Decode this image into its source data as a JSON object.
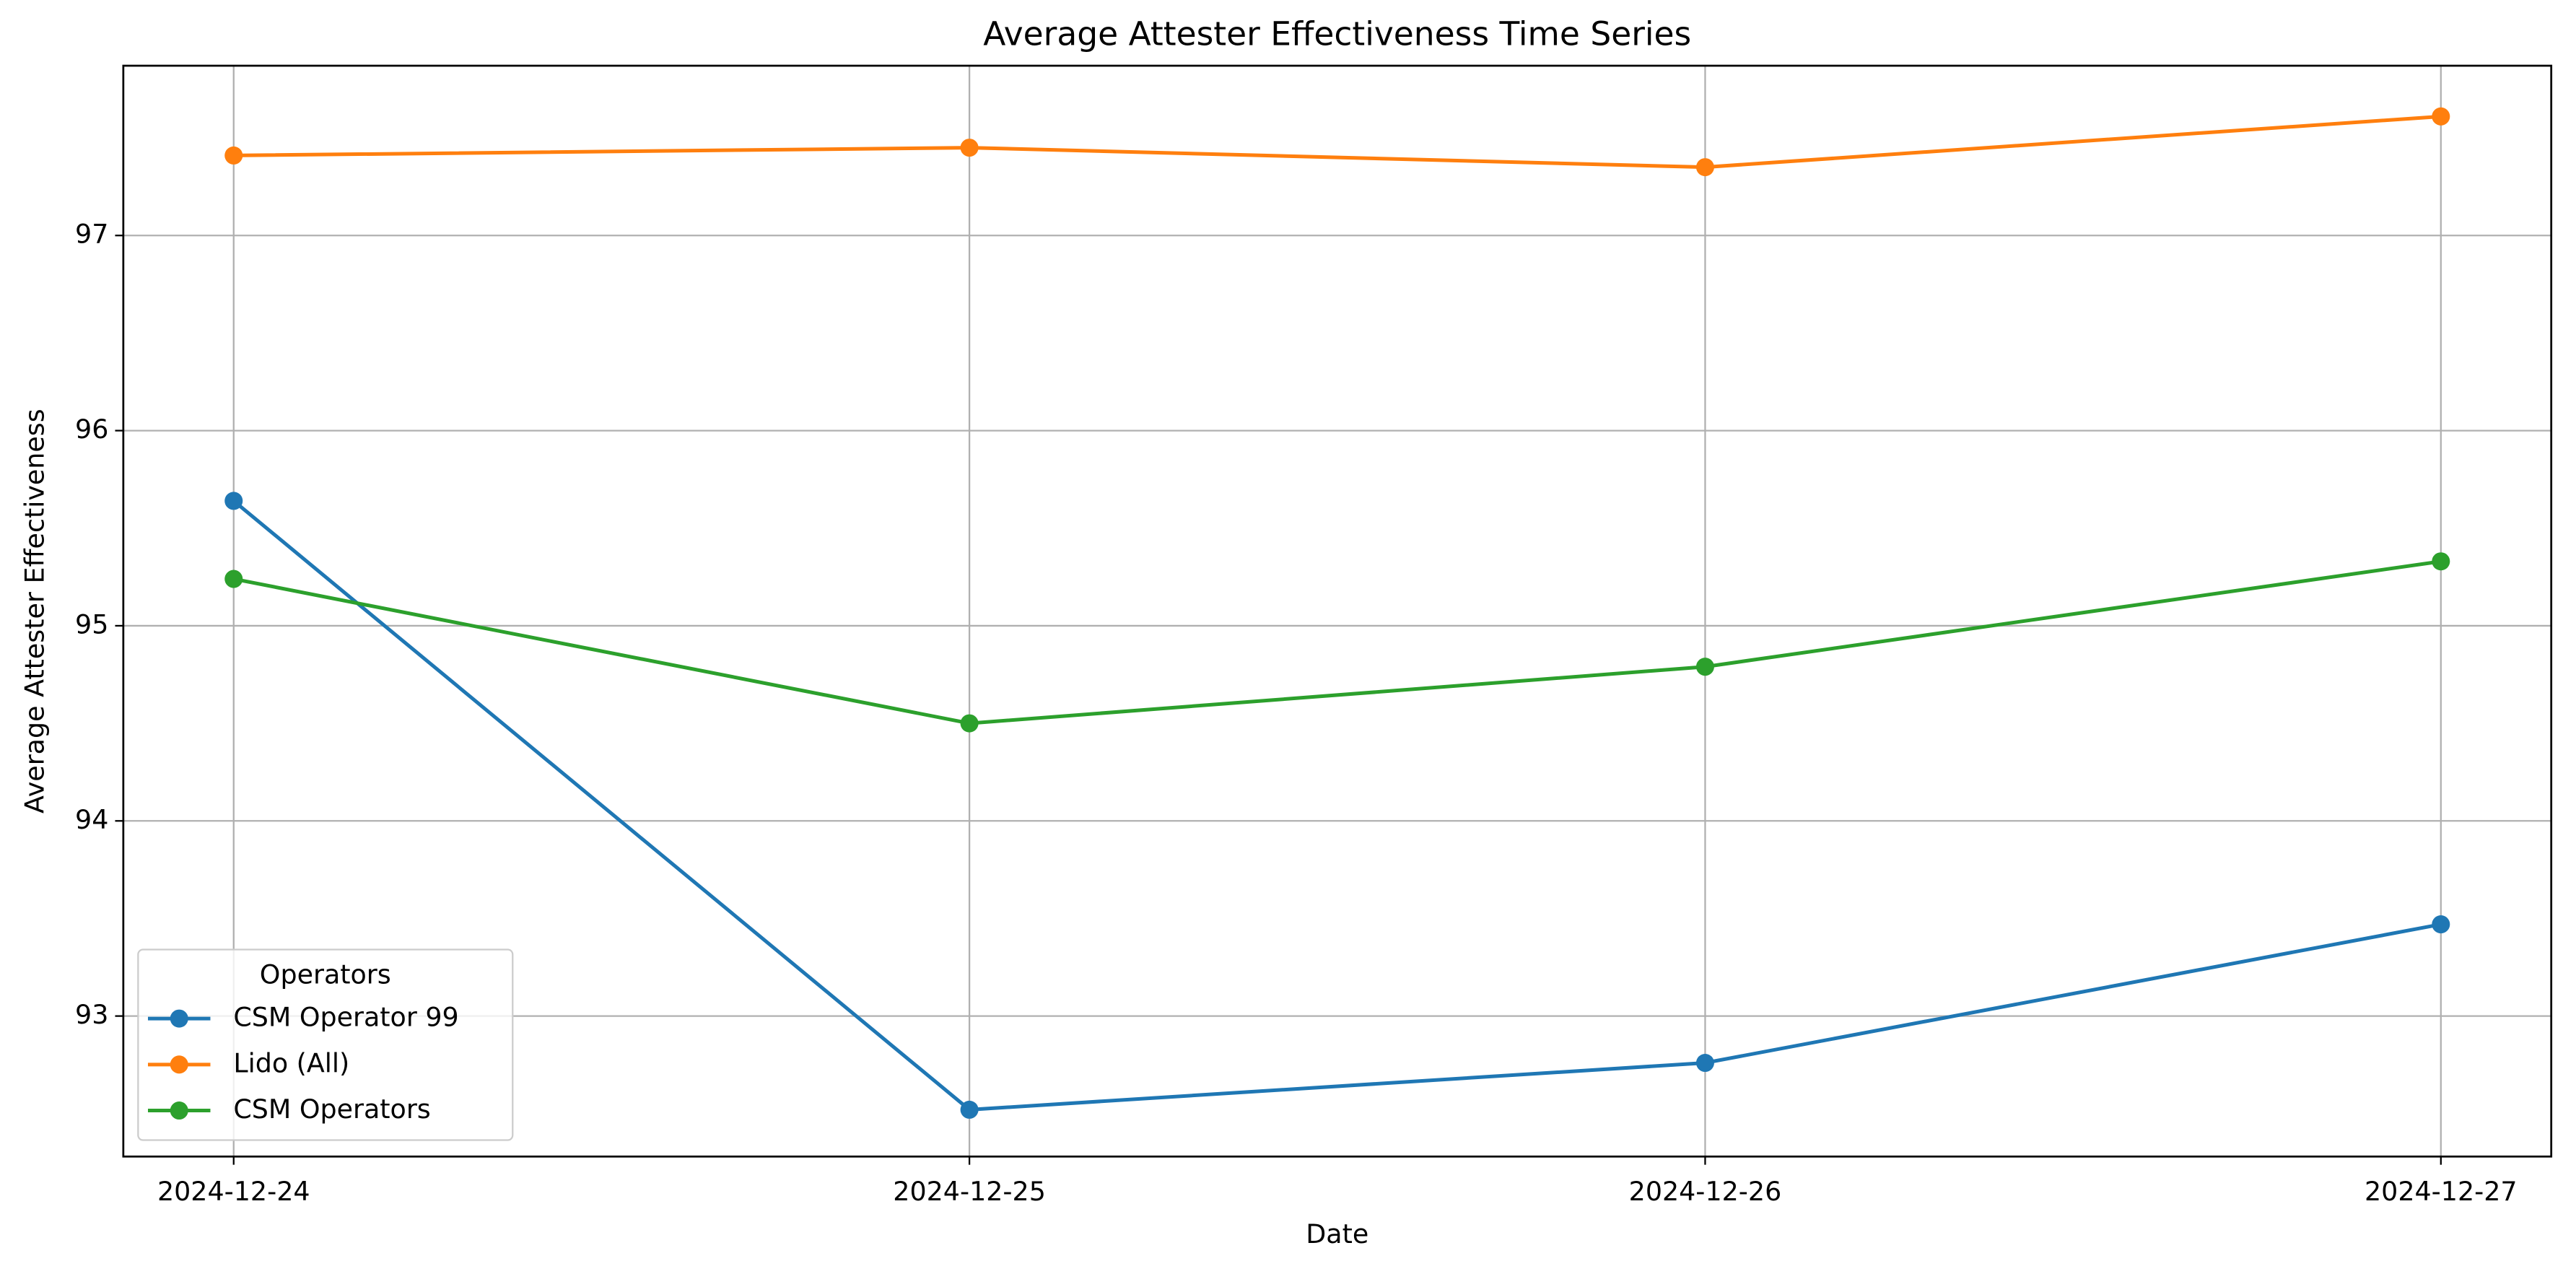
{
  "chart_data": {
    "type": "line",
    "title": "Average Attester Effectiveness Time Series",
    "x_label": "Date",
    "y_label": "Average Attester Effectiveness",
    "categories": [
      "2024-12-24",
      "2024-12-25",
      "2024-12-26",
      "2024-12-27"
    ],
    "series": [
      {
        "name": "CSM Operator 99",
        "color": "#1f77b4",
        "values": [
          95.64,
          92.52,
          92.76,
          93.47
        ]
      },
      {
        "name": "Lido (All)",
        "color": "#ff7f0e",
        "values": [
          97.41,
          97.45,
          97.35,
          97.61
        ]
      },
      {
        "name": "CSM Operators",
        "color": "#2ca02c",
        "values": [
          95.24,
          94.5,
          94.79,
          95.33
        ]
      }
    ],
    "ylim": [
      92.28,
      97.87
    ],
    "yticks": [
      93,
      94,
      95,
      96,
      97
    ],
    "grid": true,
    "legend_title": "Operators",
    "legend_position": "lower left"
  }
}
